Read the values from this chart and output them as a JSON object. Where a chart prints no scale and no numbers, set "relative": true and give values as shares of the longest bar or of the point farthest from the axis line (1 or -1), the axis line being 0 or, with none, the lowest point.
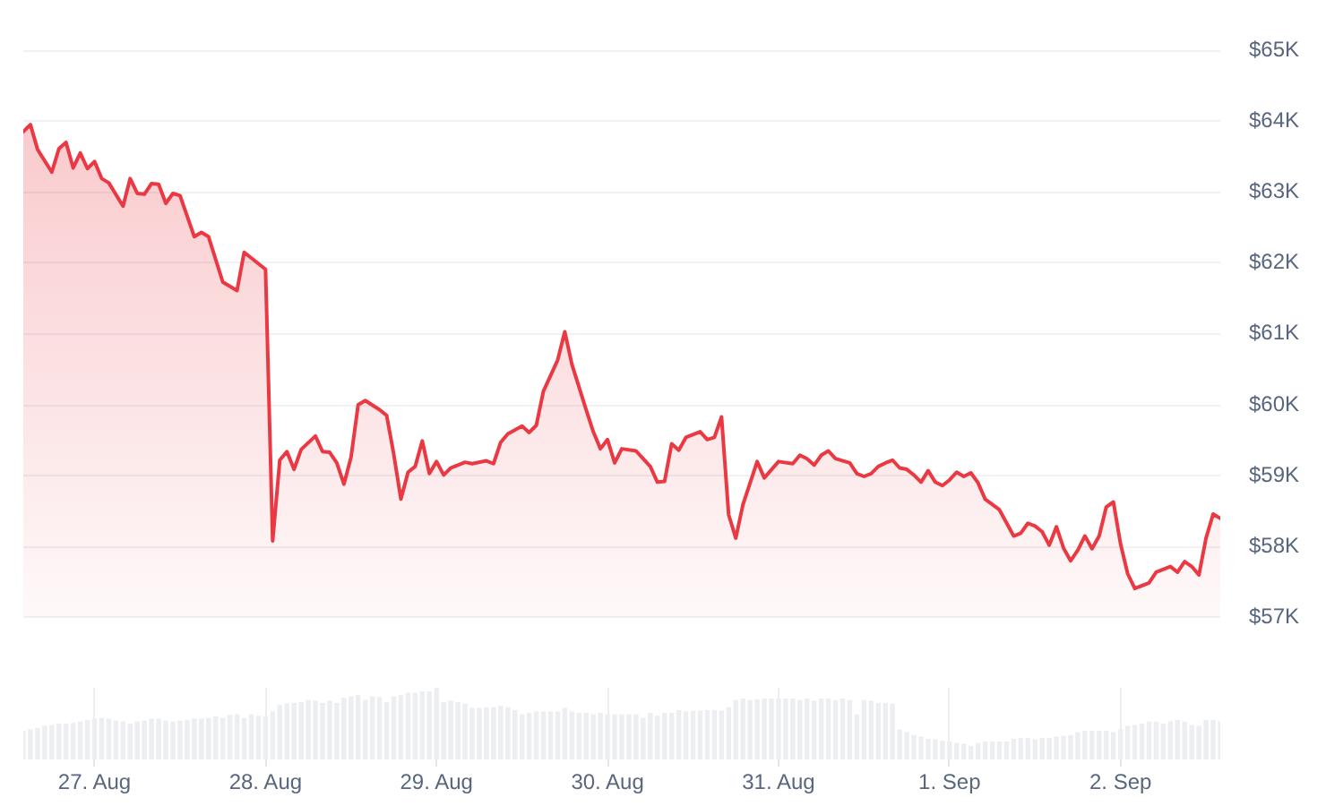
{
  "chart_data": [
    {
      "type": "area",
      "color": "#ea3943",
      "xlim": [
        "--08-26T14:00",
        "--09-02T14:00"
      ],
      "ylim": [
        57000,
        65000
      ],
      "yticks": [
        {
          "value": 57000,
          "label": "$57K"
        },
        {
          "value": 58000,
          "label": "$58K"
        },
        {
          "value": 59000,
          "label": "$59K"
        },
        {
          "value": 60000,
          "label": "$60K"
        },
        {
          "value": 61000,
          "label": "$61K"
        },
        {
          "value": 62000,
          "label": "$62K"
        },
        {
          "value": 63000,
          "label": "$63K"
        },
        {
          "value": 64000,
          "label": "$64K"
        },
        {
          "value": 65000,
          "label": "$65K"
        }
      ],
      "grid": "y",
      "tick_labels": "y",
      "x": [
        "--08-26T14:00",
        "--08-26T15:00",
        "--08-26T16:00",
        "--08-26T18:00",
        "--08-26T19:00",
        "--08-26T20:00",
        "--08-26T21:00",
        "--08-26T22:00",
        "--08-26T23:00",
        "--08-27T00:00",
        "--08-27T01:00",
        "--08-27T02:00",
        "--08-27T04:00",
        "--08-27T05:00",
        "--08-27T06:00",
        "--08-27T07:00",
        "--08-27T08:00",
        "--08-27T09:00",
        "--08-27T10:00",
        "--08-27T11:00",
        "--08-27T12:00",
        "--08-27T14:00",
        "--08-27T15:00",
        "--08-27T16:00",
        "--08-27T18:00",
        "--08-27T20:00",
        "--08-27T21:00",
        "--08-28T00:00",
        "--08-28T01:00",
        "--08-28T02:00",
        "--08-28T03:00",
        "--08-28T04:00",
        "--08-28T05:00",
        "--08-28T07:00",
        "--08-28T08:00",
        "--08-28T09:00",
        "--08-28T10:00",
        "--08-28T11:00",
        "--08-28T12:00",
        "--08-28T13:00",
        "--08-28T14:00",
        "--08-28T16:00",
        "--08-28T17:00",
        "--08-28T18:00",
        "--08-28T19:00",
        "--08-28T20:00",
        "--08-28T21:00",
        "--08-28T22:00",
        "--08-28T23:00",
        "--08-29T00:00",
        "--08-29T01:00",
        "--08-29T02:00",
        "--08-29T04:00",
        "--08-29T05:00",
        "--08-29T07:00",
        "--08-29T08:00",
        "--08-29T09:00",
        "--08-29T10:00",
        "--08-29T12:00",
        "--08-29T13:00",
        "--08-29T14:00",
        "--08-29T15:00",
        "--08-29T17:00",
        "--08-29T18:00",
        "--08-29T19:00",
        "--08-29T21:00",
        "--08-29T22:00",
        "--08-29T23:00",
        "--08-30T00:00",
        "--08-30T01:00",
        "--08-30T02:00",
        "--08-30T04:00",
        "--08-30T06:00",
        "--08-30T07:00",
        "--08-30T08:00",
        "--08-30T09:00",
        "--08-30T10:00",
        "--08-30T11:00",
        "--08-30T13:00",
        "--08-30T14:00",
        "--08-30T15:00",
        "--08-30T16:00",
        "--08-30T17:00",
        "--08-30T18:00",
        "--08-30T19:00",
        "--08-30T21:00",
        "--08-30T22:00",
        "--08-31T00:00",
        "--08-31T02:00",
        "--08-31T03:00",
        "--08-31T04:00",
        "--08-31T05:00",
        "--08-31T06:00",
        "--08-31T07:00",
        "--08-31T08:00",
        "--08-31T10:00",
        "--08-31T11:00",
        "--08-31T12:00",
        "--08-31T13:00",
        "--08-31T14:00",
        "--08-31T15:00",
        "--08-31T16:00",
        "--08-31T17:00",
        "--08-31T18:00",
        "--08-31T19:00",
        "--08-31T20:00",
        "--08-31T21:00",
        "--08-31T22:00",
        "--08-31T23:00",
        "--09-01T00:00",
        "--09-01T01:00",
        "--09-01T02:00",
        "--09-01T03:00",
        "--09-01T04:00",
        "--09-01T05:00",
        "--09-01T07:00",
        "--09-01T09:00",
        "--09-01T10:00",
        "--09-01T11:00",
        "--09-01T12:00",
        "--09-01T13:00",
        "--09-01T14:00",
        "--09-01T15:00",
        "--09-01T16:00",
        "--09-01T17:00",
        "--09-01T18:00",
        "--09-01T19:00",
        "--09-01T20:00",
        "--09-01T21:00",
        "--09-01T22:00",
        "--09-01T23:00",
        "--09-02T00:00",
        "--09-02T01:00",
        "--09-02T02:00",
        "--09-02T04:00",
        "--09-02T05:00",
        "--09-02T07:00",
        "--09-02T08:00",
        "--09-02T09:00",
        "--09-02T10:00",
        "--09-02T11:00",
        "--09-02T12:00",
        "--09-02T13:00",
        "--09-02T14:00"
      ],
      "values": [
        63850,
        63950,
        63600,
        63280,
        63610,
        63700,
        63340,
        63550,
        63330,
        63430,
        63190,
        63130,
        62800,
        63190,
        62980,
        62970,
        63120,
        63110,
        62840,
        62980,
        62950,
        62370,
        62430,
        62370,
        61730,
        61610,
        62150,
        61910,
        58080,
        59220,
        59340,
        59090,
        59370,
        59560,
        59340,
        59330,
        59180,
        58880,
        59260,
        60000,
        60060,
        59930,
        59850,
        59300,
        58670,
        59050,
        59130,
        59490,
        59030,
        59200,
        59010,
        59110,
        59190,
        59170,
        59210,
        59170,
        59470,
        59590,
        59700,
        59610,
        59710,
        60190,
        60630,
        61030,
        60570,
        59930,
        59620,
        59380,
        59510,
        59180,
        59380,
        59350,
        59130,
        58910,
        58920,
        59450,
        59360,
        59540,
        59620,
        59510,
        59540,
        59830,
        58450,
        58120,
        58590,
        59200,
        58970,
        59200,
        59170,
        59290,
        59240,
        59150,
        59290,
        59350,
        59240,
        59180,
        59030,
        58990,
        59030,
        59130,
        59180,
        59220,
        59110,
        59090,
        59010,
        58910,
        59070,
        58910,
        58860,
        58940,
        59050,
        58990,
        59040,
        58900,
        58670,
        58520,
        58150,
        58190,
        58330,
        58290,
        58210,
        58020,
        58280,
        57980,
        57800,
        57950,
        58150,
        57970,
        58150,
        58560,
        58630,
        58040,
        57620,
        57410,
        57490,
        57640,
        57720,
        57640,
        57790,
        57720,
        57600,
        58120,
        58460,
        58400
      ]
    },
    {
      "type": "bar",
      "relative": true,
      "color": "#eceef1",
      "xlim": [
        "--08-26T14:00",
        "--09-02T14:00"
      ],
      "xticks": [
        {
          "value": "--08-27",
          "label": "27. Aug"
        },
        {
          "value": "--08-28",
          "label": "28. Aug"
        },
        {
          "value": "--08-29",
          "label": "29. Aug"
        },
        {
          "value": "--08-30",
          "label": "30. Aug"
        },
        {
          "value": "--08-31",
          "label": "31. Aug"
        },
        {
          "value": "--09-01",
          "label": "1. Sep"
        },
        {
          "value": "--09-02",
          "label": "2. Sep"
        }
      ],
      "grid": "x",
      "tick_labels": "x",
      "x": [
        "--08-26T14:00",
        "--08-26T15:00",
        "--08-26T16:00",
        "--08-26T17:00",
        "--08-26T18:00",
        "--08-26T19:00",
        "--08-26T20:00",
        "--08-26T21:00",
        "--08-26T22:00",
        "--08-26T23:00",
        "--08-27T00:00",
        "--08-27T01:00",
        "--08-27T02:00",
        "--08-27T03:00",
        "--08-27T04:00",
        "--08-27T05:00",
        "--08-27T06:00",
        "--08-27T07:00",
        "--08-27T08:00",
        "--08-27T09:00",
        "--08-27T10:00",
        "--08-27T11:00",
        "--08-27T12:00",
        "--08-27T13:00",
        "--08-27T14:00",
        "--08-27T15:00",
        "--08-27T16:00",
        "--08-27T17:00",
        "--08-27T18:00",
        "--08-27T19:00",
        "--08-27T20:00",
        "--08-27T21:00",
        "--08-27T22:00",
        "--08-27T23:00",
        "--08-28T00:00",
        "--08-28T01:00",
        "--08-28T02:00",
        "--08-28T03:00",
        "--08-28T04:00",
        "--08-28T05:00",
        "--08-28T06:00",
        "--08-28T07:00",
        "--08-28T08:00",
        "--08-28T09:00",
        "--08-28T10:00",
        "--08-28T11:00",
        "--08-28T12:00",
        "--08-28T13:00",
        "--08-28T14:00",
        "--08-28T15:00",
        "--08-28T16:00",
        "--08-28T17:00",
        "--08-28T18:00",
        "--08-28T19:00",
        "--08-28T20:00",
        "--08-28T21:00",
        "--08-28T22:00",
        "--08-28T23:00",
        "--08-29T00:00",
        "--08-29T01:00",
        "--08-29T02:00",
        "--08-29T03:00",
        "--08-29T04:00",
        "--08-29T05:00",
        "--08-29T06:00",
        "--08-29T07:00",
        "--08-29T08:00",
        "--08-29T09:00",
        "--08-29T10:00",
        "--08-29T11:00",
        "--08-29T12:00",
        "--08-29T13:00",
        "--08-29T14:00",
        "--08-29T15:00",
        "--08-29T16:00",
        "--08-29T17:00",
        "--08-29T18:00",
        "--08-29T19:00",
        "--08-29T20:00",
        "--08-29T21:00",
        "--08-29T22:00",
        "--08-29T23:00",
        "--08-30T00:00",
        "--08-30T01:00",
        "--08-30T02:00",
        "--08-30T03:00",
        "--08-30T04:00",
        "--08-30T05:00",
        "--08-30T06:00",
        "--08-30T07:00",
        "--08-30T08:00",
        "--08-30T09:00",
        "--08-30T10:00",
        "--08-30T11:00",
        "--08-30T12:00",
        "--08-30T13:00",
        "--08-30T14:00",
        "--08-30T15:00",
        "--08-30T16:00",
        "--08-30T17:00",
        "--08-30T18:00",
        "--08-30T19:00",
        "--08-30T20:00",
        "--08-30T21:00",
        "--08-30T22:00",
        "--08-30T23:00",
        "--08-31T00:00",
        "--08-31T01:00",
        "--08-31T02:00",
        "--08-31T03:00",
        "--08-31T04:00",
        "--08-31T05:00",
        "--08-31T06:00",
        "--08-31T07:00",
        "--08-31T08:00",
        "--08-31T09:00",
        "--08-31T10:00",
        "--08-31T11:00",
        "--08-31T12:00",
        "--08-31T13:00",
        "--08-31T14:00",
        "--08-31T15:00",
        "--08-31T16:00",
        "--08-31T17:00",
        "--08-31T18:00",
        "--08-31T19:00",
        "--08-31T20:00",
        "--08-31T21:00",
        "--08-31T22:00",
        "--08-31T23:00",
        "--09-01T00:00",
        "--09-01T01:00",
        "--09-01T02:00",
        "--09-01T03:00",
        "--09-01T04:00",
        "--09-01T05:00",
        "--09-01T06:00",
        "--09-01T07:00",
        "--09-01T08:00",
        "--09-01T09:00",
        "--09-01T10:00",
        "--09-01T11:00",
        "--09-01T12:00",
        "--09-01T13:00",
        "--09-01T14:00",
        "--09-01T15:00",
        "--09-01T16:00",
        "--09-01T17:00",
        "--09-01T18:00",
        "--09-01T19:00",
        "--09-01T20:00",
        "--09-01T21:00",
        "--09-01T22:00",
        "--09-01T23:00",
        "--09-02T00:00",
        "--09-02T01:00",
        "--09-02T02:00",
        "--09-02T03:00",
        "--09-02T04:00",
        "--09-02T05:00",
        "--09-02T06:00",
        "--09-02T07:00",
        "--09-02T08:00",
        "--09-02T09:00",
        "--09-02T10:00",
        "--09-02T11:00",
        "--09-02T12:00",
        "--09-02T13:00",
        "--09-02T14:00"
      ],
      "values": [
        0.4,
        0.42,
        0.44,
        0.47,
        0.48,
        0.5,
        0.5,
        0.51,
        0.53,
        0.55,
        0.57,
        0.58,
        0.57,
        0.54,
        0.53,
        0.5,
        0.53,
        0.54,
        0.57,
        0.57,
        0.54,
        0.53,
        0.54,
        0.55,
        0.57,
        0.57,
        0.58,
        0.6,
        0.58,
        0.62,
        0.63,
        0.58,
        0.63,
        0.61,
        0.6,
        0.67,
        0.76,
        0.78,
        0.79,
        0.8,
        0.83,
        0.82,
        0.79,
        0.82,
        0.79,
        0.86,
        0.88,
        0.9,
        0.83,
        0.88,
        0.87,
        0.8,
        0.88,
        0.9,
        0.93,
        0.93,
        0.95,
        0.95,
        1,
        0.8,
        0.82,
        0.8,
        0.78,
        0.72,
        0.72,
        0.73,
        0.73,
        0.75,
        0.73,
        0.69,
        0.63,
        0.65,
        0.67,
        0.67,
        0.67,
        0.67,
        0.72,
        0.67,
        0.65,
        0.65,
        0.63,
        0.65,
        0.63,
        0.63,
        0.63,
        0.63,
        0.63,
        0.58,
        0.65,
        0.61,
        0.65,
        0.65,
        0.69,
        0.67,
        0.68,
        0.68,
        0.69,
        0.69,
        0.68,
        0.73,
        0.83,
        0.85,
        0.83,
        0.84,
        0.85,
        0.85,
        0.85,
        0.85,
        0.85,
        0.83,
        0.85,
        0.82,
        0.85,
        0.85,
        0.83,
        0.85,
        0.83,
        0.63,
        0.83,
        0.82,
        0.79,
        0.79,
        0.78,
        0.42,
        0.38,
        0.34,
        0.32,
        0.29,
        0.28,
        0.26,
        0.25,
        0.23,
        0.22,
        0.19,
        0.23,
        0.25,
        0.25,
        0.25,
        0.25,
        0.29,
        0.3,
        0.3,
        0.28,
        0.3,
        0.3,
        0.32,
        0.33,
        0.34,
        0.38,
        0.4,
        0.4,
        0.4,
        0.4,
        0.38,
        0.42,
        0.47,
        0.48,
        0.5,
        0.53,
        0.53,
        0.5,
        0.53,
        0.55,
        0.53,
        0.48,
        0.47,
        0.55,
        0.55,
        0.53
      ]
    }
  ]
}
